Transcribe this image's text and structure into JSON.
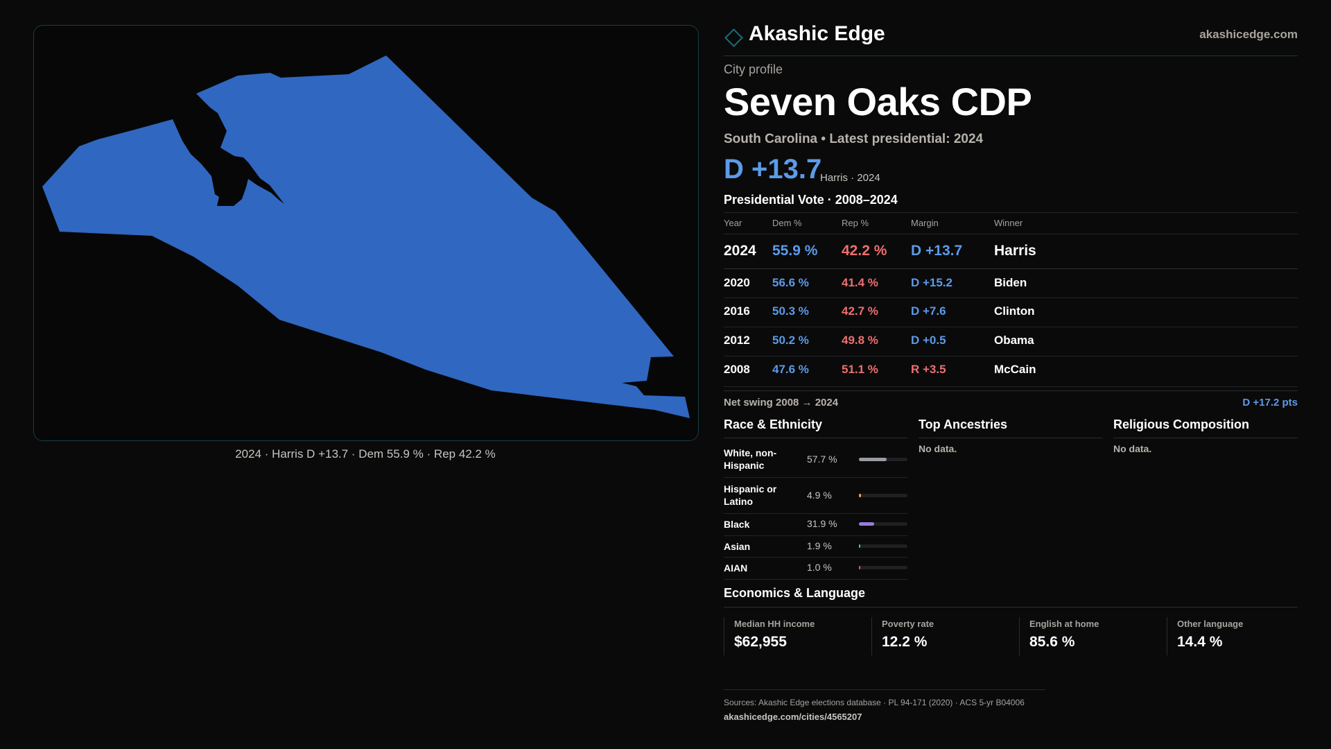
{
  "brand": {
    "name": "Akashic Edge",
    "domain": "akashicedge.com"
  },
  "profile": {
    "section_label": "City profile",
    "city_name": "Seven Oaks CDP",
    "subtitle": "South Carolina • Latest presidential: 2024",
    "headline_margin": "D +13.7",
    "headline_note": "Harris · 2024"
  },
  "map": {
    "caption": "2024 · Harris D +13.7 · Dem 55.9 % · Rep 42.2 %",
    "fill_color": "#3067c0"
  },
  "vote_table": {
    "title": "Presidential Vote · 2008–2024",
    "headers": [
      "Year",
      "Dem %",
      "Rep %",
      "Margin",
      "Winner"
    ],
    "rows": [
      {
        "year": "2024",
        "dem": "55.9 %",
        "rep": "42.2 %",
        "margin": "D +13.7",
        "winner": "Harris"
      },
      {
        "year": "2020",
        "dem": "56.6 %",
        "rep": "41.4 %",
        "margin": "D +15.2",
        "winner": "Biden"
      },
      {
        "year": "2016",
        "dem": "50.3 %",
        "rep": "42.7 %",
        "margin": "D +7.6",
        "winner": "Clinton"
      },
      {
        "year": "2012",
        "dem": "50.2 %",
        "rep": "49.8 %",
        "margin": "D +0.5",
        "winner": "Obama"
      },
      {
        "year": "2008",
        "dem": "47.6 %",
        "rep": "51.1 %",
        "margin": "R +3.5",
        "winner": "McCain"
      }
    ],
    "swing_label": "Net swing 2008 → 2024",
    "swing_value": "D +17.2 pts"
  },
  "race": {
    "title": "Race & Ethnicity",
    "rows": [
      {
        "name": "White, non-Hispanic",
        "pct": "57.7 %",
        "fraction": 0.577,
        "color": "#9a9ca3"
      },
      {
        "name": "Hispanic or Latino",
        "pct": "4.9 %",
        "fraction": 0.049,
        "color": "#f0a23a"
      },
      {
        "name": "Black",
        "pct": "31.9 %",
        "fraction": 0.319,
        "color": "#9a7be0"
      },
      {
        "name": "Asian",
        "pct": "1.9 %",
        "fraction": 0.019,
        "color": "#3fc4b0"
      },
      {
        "name": "AIAN",
        "pct": "1.0 %",
        "fraction": 0.01,
        "color": "#e0613a"
      }
    ]
  },
  "ancestries": {
    "title": "Top Ancestries",
    "empty": "No data."
  },
  "religion": {
    "title": "Religious Composition",
    "empty": "No data."
  },
  "economics": {
    "title": "Economics & Language",
    "cells": [
      {
        "label": "Median HH income",
        "value": "$62,955"
      },
      {
        "label": "Poverty rate",
        "value": "12.2 %"
      },
      {
        "label": "English at home",
        "value": "85.6 %"
      },
      {
        "label": "Other language",
        "value": "14.4 %"
      }
    ]
  },
  "footer": {
    "sources": "Sources: Akashic Edge elections database · PL 94-171 (2020) · ACS 5-yr B04006",
    "url": "akashicedge.com/cities/4565207"
  },
  "colors": {
    "dem": "#5b9be8",
    "rep": "#ef6f6f",
    "accent": "#1e6e78"
  }
}
